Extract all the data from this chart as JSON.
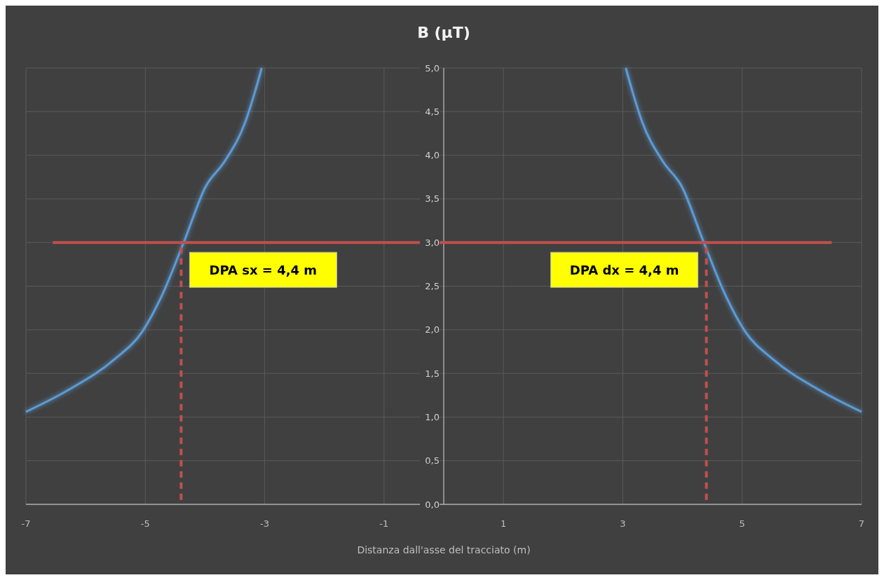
{
  "chart_data": {
    "type": "line",
    "title": "B (µT)",
    "xlabel": "Distanza dall'asse del tracciato (m)",
    "xlim": [
      -7,
      7
    ],
    "xticks": [
      -7,
      -5,
      -3,
      -1,
      1,
      3,
      5,
      7
    ],
    "ylim": [
      0,
      5
    ],
    "yticks": [
      {
        "value": 0,
        "label": "0,0"
      },
      {
        "value": 0.5,
        "label": "0,5"
      },
      {
        "value": 1,
        "label": "1,0"
      },
      {
        "value": 1.5,
        "label": "1,5"
      },
      {
        "value": 2,
        "label": "2,0"
      },
      {
        "value": 2.5,
        "label": "2,5"
      },
      {
        "value": 3,
        "label": "3,0"
      },
      {
        "value": 3.5,
        "label": "3,5"
      },
      {
        "value": 4,
        "label": "4,0"
      },
      {
        "value": 4.5,
        "label": "4,5"
      },
      {
        "value": 5,
        "label": "5,0"
      }
    ],
    "grid": true,
    "series": [
      {
        "color": "#5b9bd5",
        "x": [
          -7,
          -6.29,
          -5.52,
          -5.05,
          -4.73,
          -4.34,
          -3.99,
          -3.67,
          -3.32,
          -3.17,
          -3.05
        ],
        "values": [
          1.06,
          1.31,
          1.66,
          1.98,
          2.38,
          3.03,
          3.64,
          3.93,
          4.39,
          4.71,
          5.0
        ]
      },
      {
        "color": "#5b9bd5",
        "x": [
          3.05,
          3.17,
          3.32,
          3.67,
          3.99,
          4.34,
          4.73,
          5.05,
          5.52,
          6.29,
          7
        ],
        "values": [
          5.0,
          4.71,
          4.39,
          3.93,
          3.64,
          3.03,
          2.38,
          1.98,
          1.66,
          1.31,
          1.06
        ]
      },
      {
        "color": "#c0504d",
        "line_style": "solid",
        "x": [
          -6.55,
          6.5
        ],
        "values": [
          3,
          3
        ]
      },
      {
        "color": "#c0504d",
        "line_style": "dashed",
        "x": [
          -4.4,
          -4.4
        ],
        "values": [
          0.05,
          3
        ]
      },
      {
        "color": "#c0504d",
        "line_style": "dashed",
        "x": [
          4.4,
          4.4
        ],
        "values": [
          0.05,
          3
        ]
      }
    ],
    "annotations": [
      {
        "text": "DPA sx = 4,4 m",
        "x": -4.4,
        "y": 3
      },
      {
        "text": "DPA dx = 4,4 m",
        "x": 4.4,
        "y": 3
      }
    ]
  }
}
